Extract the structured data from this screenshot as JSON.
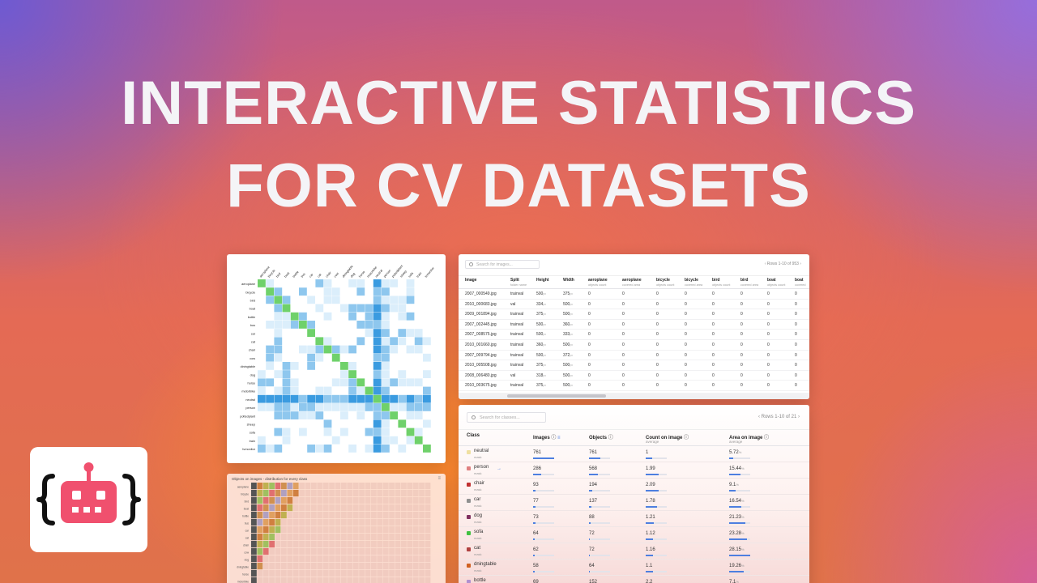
{
  "headline": {
    "line1": "INTERACTIVE STATISTICS",
    "line2": "FOR CV DATASETS"
  },
  "colors": {
    "heat_low": "#dbeefb",
    "heat_mid": "#8ec7ee",
    "heat_high": "#3a9be0",
    "heat_diag": "#6fd16a",
    "accent": "#4d7fe0",
    "logo": "#f0506e"
  },
  "heatmap": {
    "classes": [
      "aeroplane",
      "bicycle",
      "bird",
      "boat",
      "bottle",
      "bus",
      "car",
      "cat",
      "chair",
      "cow",
      "diningtable",
      "dog",
      "horse",
      "motorbike",
      "neutral",
      "person",
      "pottedplant",
      "sheep",
      "sofa",
      "train",
      "tvmonitor"
    ]
  },
  "distribution": {
    "title": "Objects on images - distribution for every class",
    "menu_icon": "menu-icon",
    "rows": [
      "aeroplane",
      "bicycle",
      "bird",
      "boat",
      "bottle",
      "bus",
      "car",
      "cat",
      "chair",
      "cow",
      "dog",
      "dningtable",
      "horse",
      "motorbike"
    ]
  },
  "images_table": {
    "search_placeholder": "Search for images...",
    "pager": "Rows 1-10 of 953",
    "columns": [
      {
        "label": "Image",
        "sub": ""
      },
      {
        "label": "Split",
        "sub": "folder name"
      },
      {
        "label": "Height",
        "sub": ""
      },
      {
        "label": "Width",
        "sub": ""
      },
      {
        "label": "aeroplane",
        "sub": "objects count"
      },
      {
        "label": "aeroplane",
        "sub": "covered area"
      },
      {
        "label": "bicycle",
        "sub": "objects count"
      },
      {
        "label": "bicycle",
        "sub": "covered area"
      },
      {
        "label": "bird",
        "sub": "objects count"
      },
      {
        "label": "bird",
        "sub": "covered area"
      },
      {
        "label": "boat",
        "sub": "objects count"
      },
      {
        "label": "boat",
        "sub": "covered"
      }
    ],
    "px_unit": "px",
    "rows": [
      {
        "image": "2007_000549.jpg",
        "split": "trainval",
        "height": "500",
        "width": "375"
      },
      {
        "image": "2010_000683.jpg",
        "split": "val",
        "height": "334",
        "width": "500"
      },
      {
        "image": "2009_001894.jpg",
        "split": "trainval",
        "height": "375",
        "width": "500"
      },
      {
        "image": "2007_002445.jpg",
        "split": "trainval",
        "height": "500",
        "width": "360"
      },
      {
        "image": "2007_008575.jpg",
        "split": "trainval",
        "height": "500",
        "width": "333"
      },
      {
        "image": "2010_001660.jpg",
        "split": "trainval",
        "height": "360",
        "width": "500"
      },
      {
        "image": "2007_009794.jpg",
        "split": "trainval",
        "height": "500",
        "width": "372"
      },
      {
        "image": "2010_005508.jpg",
        "split": "trainval",
        "height": "375",
        "width": "500"
      },
      {
        "image": "2008_006480.jpg",
        "split": "val",
        "height": "318",
        "width": "500"
      },
      {
        "image": "2010_003675.jpg",
        "split": "trainval",
        "height": "375",
        "width": "500"
      }
    ],
    "zero": "0"
  },
  "classes_table": {
    "search_placeholder": "Search for classes...",
    "pager": "Rows 1-10 of 21",
    "columns": {
      "class": "Class",
      "images": "Images",
      "objects": "Objects",
      "count": "Count on image",
      "count_sub": "average",
      "area": "Area on image",
      "area_sub": "average"
    },
    "rows": [
      {
        "name": "neutral",
        "type": "mask",
        "color": "#f0e0a0",
        "images": "761",
        "objects": "761",
        "count": "1",
        "area": "5.72",
        "images_frac": 1.0,
        "objects_frac": 0.55,
        "count_frac": 0.3,
        "area_frac": 0.2
      },
      {
        "name": "person",
        "type": "mask",
        "color": "#e08080",
        "images": "286",
        "objects": "568",
        "count": "1.99",
        "area": "15.44",
        "images_frac": 0.38,
        "objects_frac": 0.41,
        "count_frac": 0.6,
        "area_frac": 0.55
      },
      {
        "name": "chair",
        "type": "mask",
        "color": "#c03030",
        "images": "93",
        "objects": "194",
        "count": "2.09",
        "area": "9.1",
        "images_frac": 0.12,
        "objects_frac": 0.14,
        "count_frac": 0.63,
        "area_frac": 0.32
      },
      {
        "name": "car",
        "type": "mask",
        "color": "#909090",
        "images": "77",
        "objects": "137",
        "count": "1.78",
        "area": "16.54",
        "images_frac": 0.1,
        "objects_frac": 0.1,
        "count_frac": 0.54,
        "area_frac": 0.59
      },
      {
        "name": "dog",
        "type": "mask",
        "color": "#803060",
        "images": "73",
        "objects": "88",
        "count": "1.21",
        "area": "21.23",
        "images_frac": 0.1,
        "objects_frac": 0.06,
        "count_frac": 0.37,
        "area_frac": 0.76
      },
      {
        "name": "sofa",
        "type": "mask",
        "color": "#40c040",
        "images": "64",
        "objects": "72",
        "count": "1.12",
        "area": "23.28",
        "images_frac": 0.08,
        "objects_frac": 0.05,
        "count_frac": 0.34,
        "area_frac": 0.83
      },
      {
        "name": "cat",
        "type": "mask",
        "color": "#b04040",
        "images": "62",
        "objects": "72",
        "count": "1.16",
        "area": "28.15",
        "images_frac": 0.08,
        "objects_frac": 0.05,
        "count_frac": 0.35,
        "area_frac": 1.0
      },
      {
        "name": "dningtable",
        "type": "mask",
        "color": "#d06020",
        "images": "58",
        "objects": "64",
        "count": "1.1",
        "area": "19.26",
        "images_frac": 0.08,
        "objects_frac": 0.05,
        "count_frac": 0.33,
        "area_frac": 0.68
      },
      {
        "name": "bottle",
        "type": "mask",
        "color": "#b090d0",
        "images": "69",
        "objects": "152",
        "count": "2.2",
        "area": "7.1",
        "images_frac": 0.09,
        "objects_frac": 0.11,
        "count_frac": 0.66,
        "area_frac": 0.25
      }
    ],
    "pct_unit": "%"
  },
  "logo": {
    "icon": "robot-icon"
  }
}
